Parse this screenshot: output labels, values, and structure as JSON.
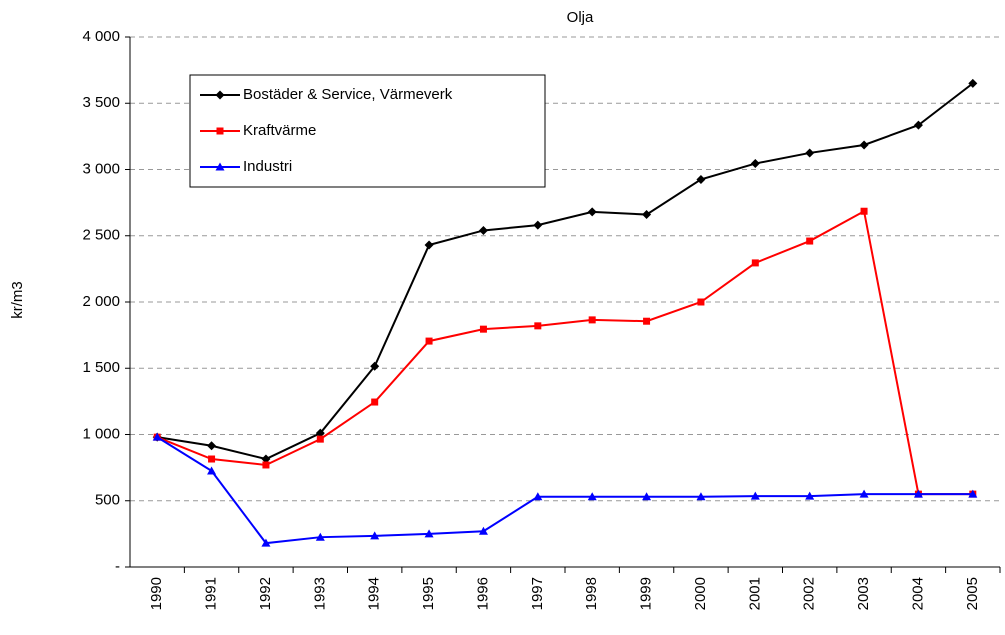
{
  "chart_data": {
    "type": "line",
    "title": "Olja",
    "y_label": "kr/m3",
    "categories": [
      "1990",
      "1991",
      "1992",
      "1993",
      "1994",
      "1995",
      "1996",
      "1997",
      "1998",
      "1999",
      "2000",
      "2001",
      "2002",
      "2003",
      "2004",
      "2005"
    ],
    "series": [
      {
        "name": "Bostäder & Service, Värmeverk",
        "color": "#000000",
        "marker": "diamond",
        "values": [
          980,
          915,
          815,
          1010,
          1515,
          2430,
          2540,
          2580,
          2680,
          2660,
          2925,
          3045,
          3125,
          3185,
          3335,
          3650
        ]
      },
      {
        "name": "Kraftvärme",
        "color": "#ff0000",
        "marker": "square",
        "values": [
          980,
          815,
          770,
          965,
          1245,
          1705,
          1795,
          1820,
          1865,
          1855,
          2000,
          2295,
          2460,
          2685,
          550,
          550
        ]
      },
      {
        "name": "Industri",
        "color": "#0000ff",
        "marker": "triangle",
        "values": [
          980,
          725,
          180,
          225,
          235,
          250,
          270,
          530,
          530,
          530,
          530,
          535,
          535,
          550,
          550,
          550
        ]
      }
    ],
    "ylim": [
      0,
      4000
    ],
    "yticks": [
      {
        "value": 0,
        "label": "-"
      },
      500,
      {
        "value": 1000,
        "label": "1 000"
      },
      {
        "value": 1500,
        "label": "1 500"
      },
      {
        "value": 2000,
        "label": "2 000"
      },
      {
        "value": 2500,
        "label": "2 500"
      },
      {
        "value": 3000,
        "label": "3 000"
      },
      {
        "value": 3500,
        "label": "3 500"
      },
      {
        "value": 4000,
        "label": "4 000"
      }
    ],
    "grid": true
  }
}
